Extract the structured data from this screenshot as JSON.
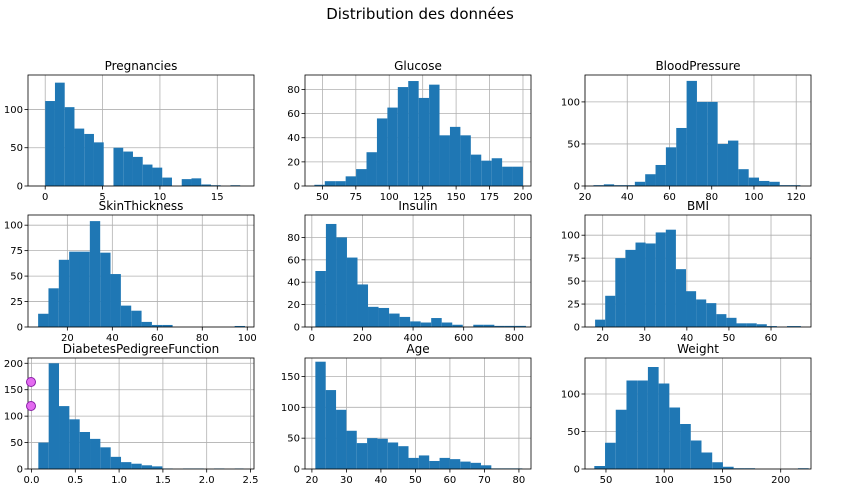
{
  "figure": {
    "title": "Distribution des données"
  },
  "chart_data": [
    {
      "type": "bar",
      "title": "Pregnancies",
      "xlim": [
        -1.5,
        18.2
      ],
      "ylim": [
        0,
        145
      ],
      "xticks": [
        0,
        5,
        10,
        15
      ],
      "yticks": [
        0,
        50,
        100
      ],
      "grid": true,
      "bins": [
        [
          0,
          0.85,
          111
        ],
        [
          0.85,
          1.7,
          135
        ],
        [
          1.7,
          2.55,
          103
        ],
        [
          2.55,
          3.4,
          75
        ],
        [
          3.4,
          4.25,
          68
        ],
        [
          4.25,
          5.1,
          57
        ],
        [
          5.1,
          5.95,
          0
        ],
        [
          5.95,
          6.8,
          50
        ],
        [
          6.8,
          7.65,
          45
        ],
        [
          7.65,
          8.5,
          38
        ],
        [
          8.5,
          9.35,
          28
        ],
        [
          9.35,
          10.2,
          24
        ],
        [
          10.2,
          11.05,
          11
        ],
        [
          11.05,
          11.9,
          0
        ],
        [
          11.9,
          12.75,
          9
        ],
        [
          12.75,
          13.6,
          10
        ],
        [
          13.6,
          14.45,
          2
        ],
        [
          14.45,
          15.3,
          1
        ],
        [
          15.3,
          16.15,
          0
        ],
        [
          16.15,
          17,
          1
        ]
      ]
    },
    {
      "type": "bar",
      "title": "Glucose",
      "xlim": [
        37,
        206
      ],
      "ylim": [
        0,
        92
      ],
      "xticks": [
        50,
        75,
        100,
        125,
        150,
        175,
        200
      ],
      "yticks": [
        0,
        20,
        40,
        60,
        80
      ],
      "grid": true,
      "bins": [
        [
          44,
          51.8,
          1
        ],
        [
          51.8,
          59.6,
          4
        ],
        [
          59.6,
          67.4,
          4
        ],
        [
          67.4,
          75.2,
          8
        ],
        [
          75.2,
          83,
          14
        ],
        [
          83,
          90.8,
          28
        ],
        [
          90.8,
          98.6,
          56
        ],
        [
          98.6,
          106.4,
          65
        ],
        [
          106.4,
          114.2,
          82
        ],
        [
          114.2,
          122,
          87
        ],
        [
          122,
          129.8,
          73
        ],
        [
          129.8,
          137.6,
          84
        ],
        [
          137.6,
          145.4,
          42
        ],
        [
          145.4,
          153.2,
          49
        ],
        [
          153.2,
          161,
          42
        ],
        [
          161,
          168.8,
          26
        ],
        [
          168.8,
          176.6,
          21
        ],
        [
          176.6,
          184.4,
          23
        ],
        [
          184.4,
          192.2,
          16
        ],
        [
          192.2,
          200,
          16
        ]
      ]
    },
    {
      "type": "bar",
      "title": "BloodPressure",
      "xlim": [
        20,
        127
      ],
      "ylim": [
        0,
        132
      ],
      "xticks": [
        20,
        40,
        60,
        80,
        100,
        120
      ],
      "yticks": [
        0,
        50,
        100
      ],
      "grid": true,
      "bins": [
        [
          24,
          28.9,
          1
        ],
        [
          28.9,
          33.8,
          2
        ],
        [
          33.8,
          38.7,
          1
        ],
        [
          38.7,
          43.6,
          1
        ],
        [
          43.6,
          48.5,
          5
        ],
        [
          48.5,
          53.4,
          14
        ],
        [
          53.4,
          58.3,
          25
        ],
        [
          58.3,
          63.2,
          46
        ],
        [
          63.2,
          68.1,
          69
        ],
        [
          68.1,
          73,
          125
        ],
        [
          73,
          77.9,
          100
        ],
        [
          77.9,
          82.8,
          100
        ],
        [
          82.8,
          87.7,
          50
        ],
        [
          87.7,
          92.6,
          54
        ],
        [
          92.6,
          97.5,
          20
        ],
        [
          97.5,
          102.4,
          10
        ],
        [
          102.4,
          107.3,
          6
        ],
        [
          107.3,
          112.2,
          5
        ],
        [
          112.2,
          117.1,
          1
        ],
        [
          117.1,
          122,
          1
        ]
      ]
    },
    {
      "type": "bar",
      "title": "SkinThickness",
      "xlim": [
        2.5,
        103
      ],
      "ylim": [
        0,
        110
      ],
      "xticks": [
        20,
        40,
        60,
        80,
        100
      ],
      "yticks": [
        0,
        25,
        50,
        75,
        100
      ],
      "grid": true,
      "bins": [
        [
          7,
          11.6,
          13
        ],
        [
          11.6,
          16.2,
          38
        ],
        [
          16.2,
          20.8,
          66
        ],
        [
          20.8,
          25.4,
          74
        ],
        [
          25.4,
          30,
          74
        ],
        [
          30,
          34.6,
          104
        ],
        [
          34.6,
          39.2,
          73
        ],
        [
          39.2,
          43.8,
          52
        ],
        [
          43.8,
          48.4,
          21
        ],
        [
          48.4,
          53,
          16
        ],
        [
          53,
          57.6,
          5
        ],
        [
          57.6,
          62.2,
          2
        ],
        [
          62.2,
          66.8,
          2
        ],
        [
          66.8,
          71.4,
          0
        ],
        [
          71.4,
          76,
          0
        ],
        [
          76,
          80.6,
          0
        ],
        [
          80.6,
          85.2,
          0
        ],
        [
          85.2,
          89.8,
          0
        ],
        [
          89.8,
          94.4,
          0
        ],
        [
          94.4,
          99,
          1
        ]
      ]
    },
    {
      "type": "bar",
      "title": "Insulin",
      "xlim": [
        -27,
        866
      ],
      "ylim": [
        0,
        100
      ],
      "xticks": [
        0,
        200,
        400,
        600,
        800
      ],
      "yticks": [
        0,
        20,
        40,
        60,
        80
      ],
      "grid": true,
      "bins": [
        [
          14,
          55.6,
          50
        ],
        [
          55.6,
          97.2,
          92
        ],
        [
          97.2,
          138.8,
          80
        ],
        [
          138.8,
          180.4,
          62
        ],
        [
          180.4,
          222,
          38
        ],
        [
          222,
          263.6,
          18
        ],
        [
          263.6,
          305.2,
          17
        ],
        [
          305.2,
          346.8,
          12
        ],
        [
          346.8,
          388.4,
          9
        ],
        [
          388.4,
          430,
          5
        ],
        [
          430,
          471.6,
          4
        ],
        [
          471.6,
          513.2,
          8
        ],
        [
          513.2,
          554.8,
          4
        ],
        [
          554.8,
          596.4,
          2
        ],
        [
          596.4,
          638,
          0
        ],
        [
          638,
          679.6,
          2
        ],
        [
          679.6,
          721.2,
          2
        ],
        [
          721.2,
          762.8,
          1
        ],
        [
          762.8,
          804.4,
          1
        ],
        [
          804.4,
          846,
          1
        ]
      ]
    },
    {
      "type": "bar",
      "title": "BMI",
      "xlim": [
        15.8,
        69.5
      ],
      "ylim": [
        0,
        122
      ],
      "xticks": [
        20,
        30,
        40,
        50,
        60
      ],
      "yticks": [
        0,
        25,
        50,
        75,
        100
      ],
      "grid": true,
      "bins": [
        [
          18.2,
          20.6,
          8
        ],
        [
          20.6,
          23,
          34
        ],
        [
          23,
          25.4,
          75
        ],
        [
          25.4,
          27.8,
          84
        ],
        [
          27.8,
          30.2,
          92
        ],
        [
          30.2,
          32.6,
          91
        ],
        [
          32.6,
          35,
          103
        ],
        [
          35,
          37.4,
          106
        ],
        [
          37.4,
          39.8,
          63
        ],
        [
          39.8,
          42.2,
          39
        ],
        [
          42.2,
          44.6,
          30
        ],
        [
          44.6,
          47,
          26
        ],
        [
          47,
          49.4,
          14
        ],
        [
          49.4,
          51.8,
          10
        ],
        [
          51.8,
          54.2,
          4
        ],
        [
          54.2,
          56.6,
          4
        ],
        [
          56.6,
          59,
          3
        ],
        [
          59,
          61.4,
          1
        ],
        [
          61.4,
          63.8,
          0
        ],
        [
          63.8,
          67.1,
          1
        ]
      ]
    },
    {
      "type": "bar",
      "title": "DiabetesPedigreeFunction",
      "xlim": [
        -0.04,
        2.54
      ],
      "ylim": [
        0,
        210
      ],
      "xticks": [
        0.0,
        0.5,
        1.0,
        1.5,
        2.0,
        2.5
      ],
      "yticks": [
        0,
        50,
        100,
        150,
        200
      ],
      "grid": true,
      "bins": [
        [
          0.078,
          0.196,
          50
        ],
        [
          0.196,
          0.314,
          200
        ],
        [
          0.314,
          0.432,
          119
        ],
        [
          0.432,
          0.55,
          94
        ],
        [
          0.55,
          0.668,
          70
        ],
        [
          0.668,
          0.786,
          57
        ],
        [
          0.786,
          0.904,
          41
        ],
        [
          0.904,
          1.022,
          23
        ],
        [
          1.022,
          1.14,
          13
        ],
        [
          1.14,
          1.258,
          10
        ],
        [
          1.258,
          1.376,
          7
        ],
        [
          1.376,
          1.494,
          5
        ],
        [
          1.494,
          1.612,
          1
        ],
        [
          1.612,
          1.73,
          0
        ],
        [
          1.73,
          1.848,
          1
        ],
        [
          1.848,
          1.966,
          1
        ],
        [
          1.966,
          2.084,
          0
        ],
        [
          2.084,
          2.202,
          1
        ],
        [
          2.202,
          2.32,
          0
        ],
        [
          2.32,
          2.42,
          1
        ]
      ]
    },
    {
      "type": "bar",
      "title": "Age",
      "xlim": [
        18,
        83.5
      ],
      "ylim": [
        0,
        180
      ],
      "xticks": [
        20,
        30,
        40,
        50,
        60,
        70,
        80
      ],
      "yticks": [
        0,
        50,
        100,
        150
      ],
      "grid": true,
      "bins": [
        [
          21,
          24,
          174
        ],
        [
          24,
          27,
          128
        ],
        [
          27,
          30,
          96
        ],
        [
          30,
          33,
          62
        ],
        [
          33,
          36,
          42
        ],
        [
          36,
          39,
          50
        ],
        [
          39,
          42,
          49
        ],
        [
          42,
          45,
          43
        ],
        [
          45,
          48,
          37
        ],
        [
          48,
          51,
          18
        ],
        [
          51,
          54,
          22
        ],
        [
          54,
          57,
          13
        ],
        [
          57,
          60,
          18
        ],
        [
          60,
          63,
          16
        ],
        [
          63,
          66,
          12
        ],
        [
          66,
          69,
          10
        ],
        [
          69,
          72,
          6
        ],
        [
          72,
          75,
          1
        ],
        [
          75,
          78,
          1
        ],
        [
          78,
          81,
          1
        ]
      ]
    },
    {
      "type": "bar",
      "title": "Weight",
      "xlim": [
        32,
        226
      ],
      "ylim": [
        0,
        148
      ],
      "xticks": [
        50,
        100,
        150,
        200
      ],
      "yticks": [
        0,
        50,
        100
      ],
      "grid": true,
      "bins": [
        [
          40,
          49.2,
          4
        ],
        [
          49.2,
          58.4,
          35
        ],
        [
          58.4,
          67.6,
          79
        ],
        [
          67.6,
          76.8,
          118
        ],
        [
          76.8,
          86,
          118
        ],
        [
          86,
          95.2,
          136
        ],
        [
          95.2,
          104.4,
          114
        ],
        [
          104.4,
          113.6,
          82
        ],
        [
          113.6,
          122.8,
          60
        ],
        [
          122.8,
          132,
          38
        ],
        [
          132,
          141.2,
          22
        ],
        [
          141.2,
          150.4,
          9
        ],
        [
          150.4,
          159.6,
          3
        ],
        [
          159.6,
          168.8,
          1
        ],
        [
          168.8,
          178,
          1
        ],
        [
          178,
          187.2,
          0
        ],
        [
          187.2,
          196.4,
          0
        ],
        [
          196.4,
          205.6,
          0
        ],
        [
          205.6,
          214.8,
          0
        ],
        [
          214.8,
          224,
          1
        ]
      ]
    }
  ]
}
